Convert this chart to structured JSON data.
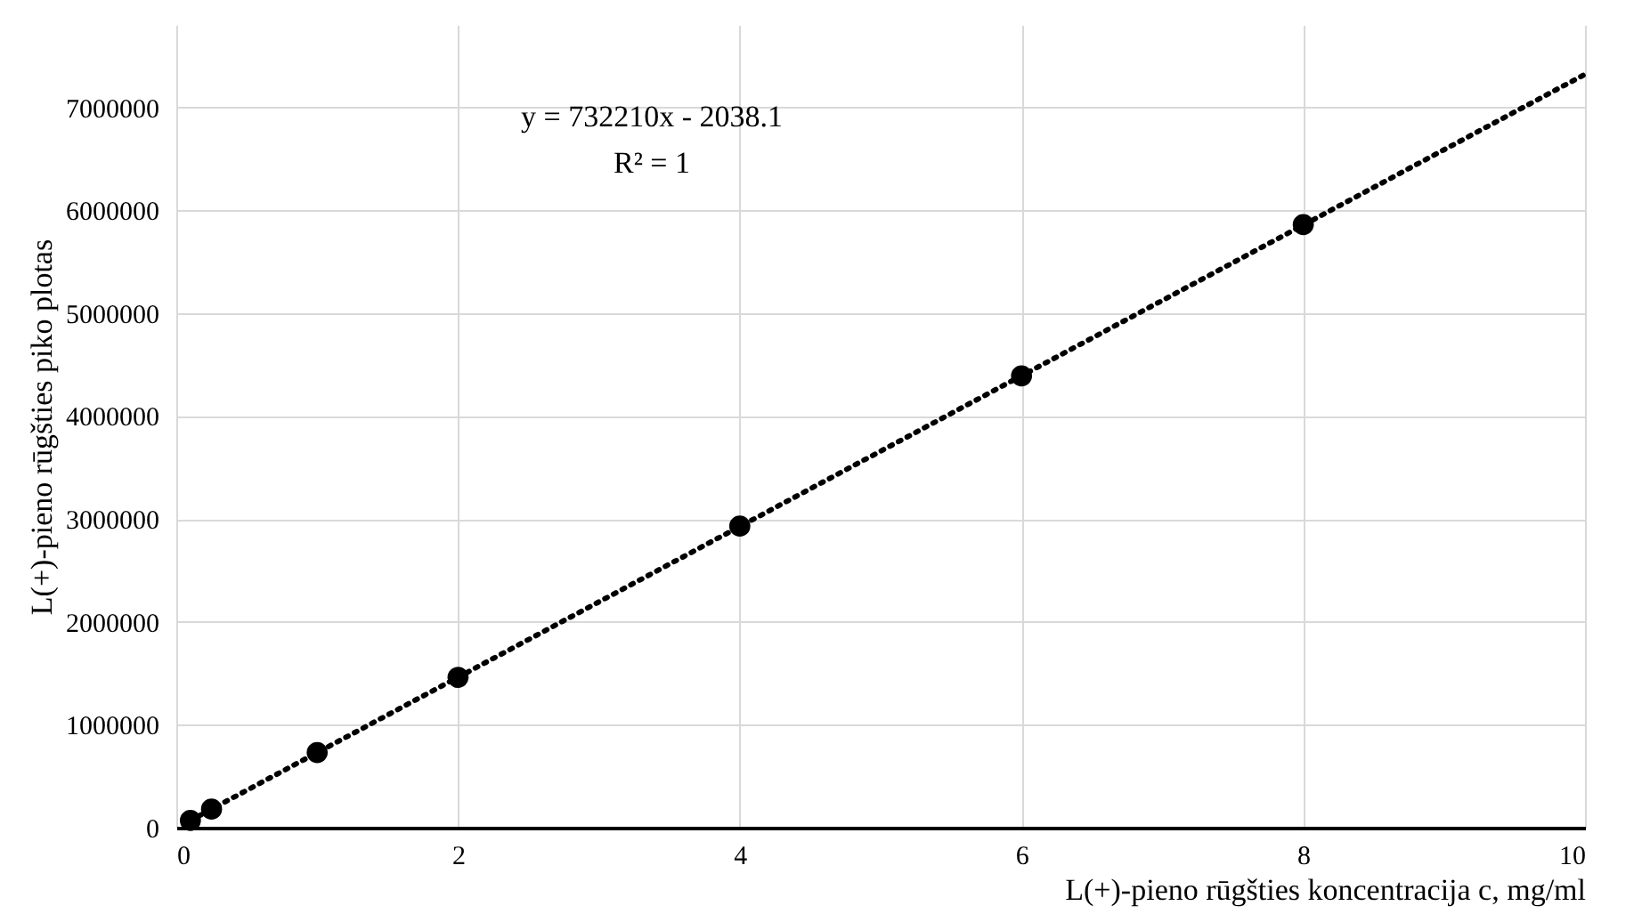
{
  "chart_data": {
    "type": "scatter",
    "xlabel": "L(+)-pieno rūgšties koncentracija c, mg/ml",
    "ylabel": "L(+)-pieno rūgšties piko plotas",
    "annotations": [
      "y = 732210x - 2038.1",
      "R² = 1"
    ],
    "xlim": [
      0,
      10
    ],
    "xticks": [
      0,
      2,
      4,
      6,
      8,
      10
    ],
    "ylim": [
      0,
      7800000
    ],
    "yticks": [
      0,
      1000000,
      2000000,
      3000000,
      4000000,
      5000000,
      6000000,
      7000000
    ],
    "grid": true,
    "series": [
      {
        "color": "#000000",
        "marker": "circle",
        "x": [
          0.1,
          0.25,
          1,
          2,
          4,
          6,
          8
        ],
        "values": [
          70000,
          180000,
          730000,
          1460000,
          2930000,
          4390000,
          5860000
        ]
      },
      {
        "type": "line",
        "color": "#000000",
        "line_style": "dotted",
        "x": [
          0.1,
          10
        ],
        "values": [
          70000,
          7320000
        ]
      }
    ]
  }
}
